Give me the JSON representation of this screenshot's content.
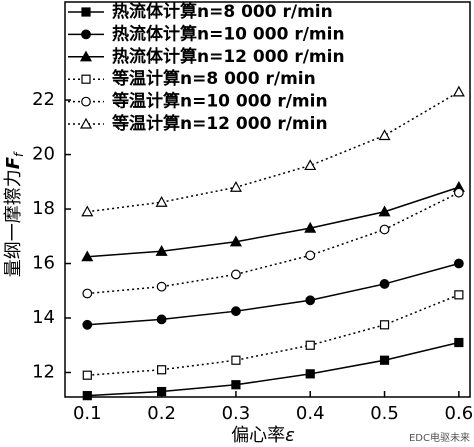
{
  "chart_data": {
    "type": "line",
    "x": [
      0.1,
      0.2,
      0.3,
      0.4,
      0.5,
      0.6
    ],
    "xlim": [
      0.07,
      0.615
    ],
    "xticks": [
      0.1,
      0.2,
      0.3,
      0.4,
      0.5,
      0.6
    ],
    "ylim": [
      11.1,
      25.6
    ],
    "yticks": [
      12,
      14,
      16,
      18,
      20,
      22
    ],
    "xlabel": [
      "偏心率",
      "ε"
    ],
    "ylabel": [
      "量纲一摩擦力",
      "F",
      "f"
    ],
    "legend": "upper left",
    "watermark": "EDC电驱未来",
    "series": [
      {
        "name": "热流体计算n=8 000 r/min",
        "color": "#000000",
        "marker": "square",
        "filled": true,
        "dash": false,
        "values": [
          11.15,
          11.3,
          11.55,
          11.95,
          12.45,
          13.1
        ]
      },
      {
        "name": "热流体计算n=10 000 r/min",
        "color": "#000000",
        "marker": "circle",
        "filled": true,
        "dash": false,
        "values": [
          13.75,
          13.95,
          14.25,
          14.65,
          15.25,
          16.0
        ]
      },
      {
        "name": "热流体计算n=12 000 r/min",
        "color": "#000000",
        "marker": "triangle",
        "filled": true,
        "dash": false,
        "values": [
          16.25,
          16.45,
          16.8,
          17.3,
          17.9,
          18.8
        ]
      },
      {
        "name": "等温计算n=8 000 r/min",
        "color": "#000000",
        "marker": "square",
        "filled": false,
        "dash": true,
        "values": [
          11.9,
          12.1,
          12.45,
          13.0,
          13.75,
          14.85
        ]
      },
      {
        "name": "等温计算n=10 000 r/min",
        "color": "#000000",
        "marker": "circle",
        "filled": false,
        "dash": true,
        "values": [
          14.9,
          15.15,
          15.6,
          16.3,
          17.25,
          18.6
        ]
      },
      {
        "name": "等温计算n=12 000 r/min",
        "color": "#000000",
        "marker": "triangle",
        "filled": false,
        "dash": true,
        "values": [
          17.9,
          18.25,
          18.8,
          19.6,
          20.7,
          22.3
        ]
      }
    ]
  }
}
